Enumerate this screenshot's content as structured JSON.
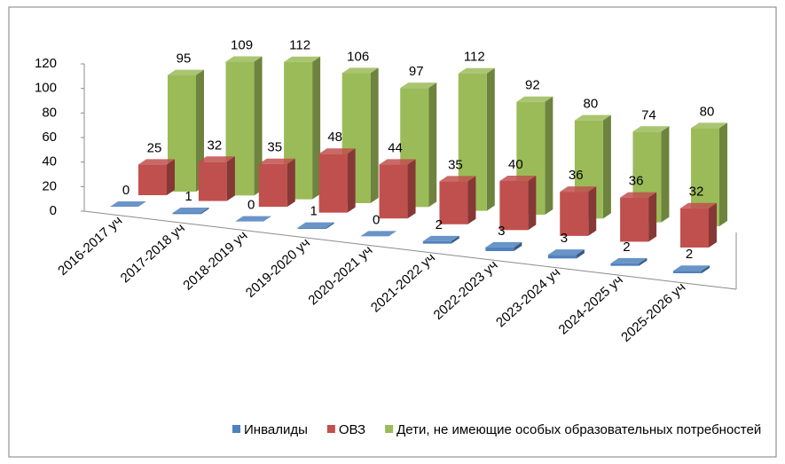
{
  "chart_data": {
    "type": "bar3d",
    "categories": [
      "2016-2017 уч",
      "2017-2018 уч",
      "2018-2019 уч",
      "2019-2020 уч",
      "2020-2021 уч",
      "2021-2022 уч",
      "2022-2023 уч",
      "2023-2024 уч",
      "2024-2025 уч",
      "2025-2026 уч"
    ],
    "series": [
      {
        "name": "Инвалиды",
        "color": "#4f81bd",
        "values": [
          0,
          1,
          0,
          1,
          0,
          2,
          3,
          3,
          2,
          2
        ]
      },
      {
        "name": "ОВЗ",
        "color": "#c0504d",
        "values": [
          25,
          32,
          35,
          48,
          44,
          35,
          40,
          36,
          36,
          32
        ]
      },
      {
        "name": "Дети, не имеющие особых образовательных потребностей",
        "color": "#9bbb59",
        "values": [
          95,
          109,
          112,
          106,
          97,
          112,
          92,
          80,
          74,
          80
        ]
      }
    ],
    "ylim": [
      0,
      120
    ],
    "yticks": [
      0,
      20,
      40,
      60,
      80,
      100,
      120
    ],
    "grid": false,
    "legend": "bottom"
  }
}
